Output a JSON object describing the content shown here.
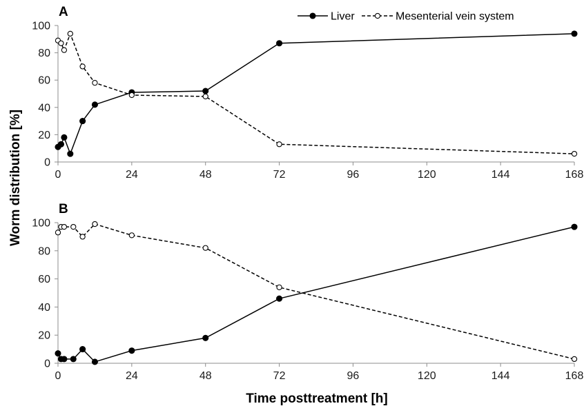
{
  "chart_data": {
    "ylabel": "Worm distribution [%]",
    "xlabel": "Time posttreatment [h]",
    "legend": {
      "placement": "top-right"
    },
    "colors": {
      "line": "#000000",
      "marker_fill_liver": "#000000",
      "marker_fill_mesenteric": "#ffffff",
      "axis": "#8c8c8c"
    },
    "panels": [
      {
        "label": "A",
        "type": "line",
        "x_ticks": [
          "0",
          "24",
          "48",
          "72",
          "96",
          "120",
          "144",
          "168"
        ],
        "y_ticks": [
          "0",
          "20",
          "40",
          "60",
          "80",
          "100"
        ],
        "xlim": [
          0,
          168
        ],
        "ylim": [
          0,
          100
        ],
        "series": [
          {
            "name": "Liver",
            "style": "solid-filled",
            "x": [
              0,
              1,
              2,
              4,
              8,
              12,
              24,
              48,
              72,
              168
            ],
            "y": [
              11,
              13,
              18,
              6,
              30,
              42,
              51,
              52,
              87,
              94
            ]
          },
          {
            "name": "Mesenterial vein system",
            "style": "dashed-open",
            "x": [
              0,
              1,
              2,
              4,
              8,
              12,
              24,
              48,
              72,
              168
            ],
            "y": [
              89,
              87,
              82,
              94,
              70,
              58,
              49,
              48,
              13,
              6
            ]
          }
        ]
      },
      {
        "label": "B",
        "type": "line",
        "x_ticks": [
          "0",
          "24",
          "48",
          "72",
          "96",
          "120",
          "144",
          "168"
        ],
        "y_ticks": [
          "0",
          "20",
          "40",
          "60",
          "80",
          "100"
        ],
        "xlim": [
          0,
          168
        ],
        "ylim": [
          0,
          100
        ],
        "series": [
          {
            "name": "Liver",
            "style": "solid-filled",
            "x": [
              0,
              1,
              2,
              5,
              8,
              12,
              24,
              48,
              72,
              168
            ],
            "y": [
              7,
              3,
              3,
              3,
              10,
              1,
              9,
              18,
              46,
              97
            ]
          },
          {
            "name": "Mesenterial vein system",
            "style": "dashed-open",
            "x": [
              0,
              1,
              2,
              5,
              8,
              12,
              24,
              48,
              72,
              168
            ],
            "y": [
              93,
              97,
              97,
              97,
              90,
              99,
              91,
              82,
              54,
              3
            ]
          }
        ]
      }
    ]
  }
}
